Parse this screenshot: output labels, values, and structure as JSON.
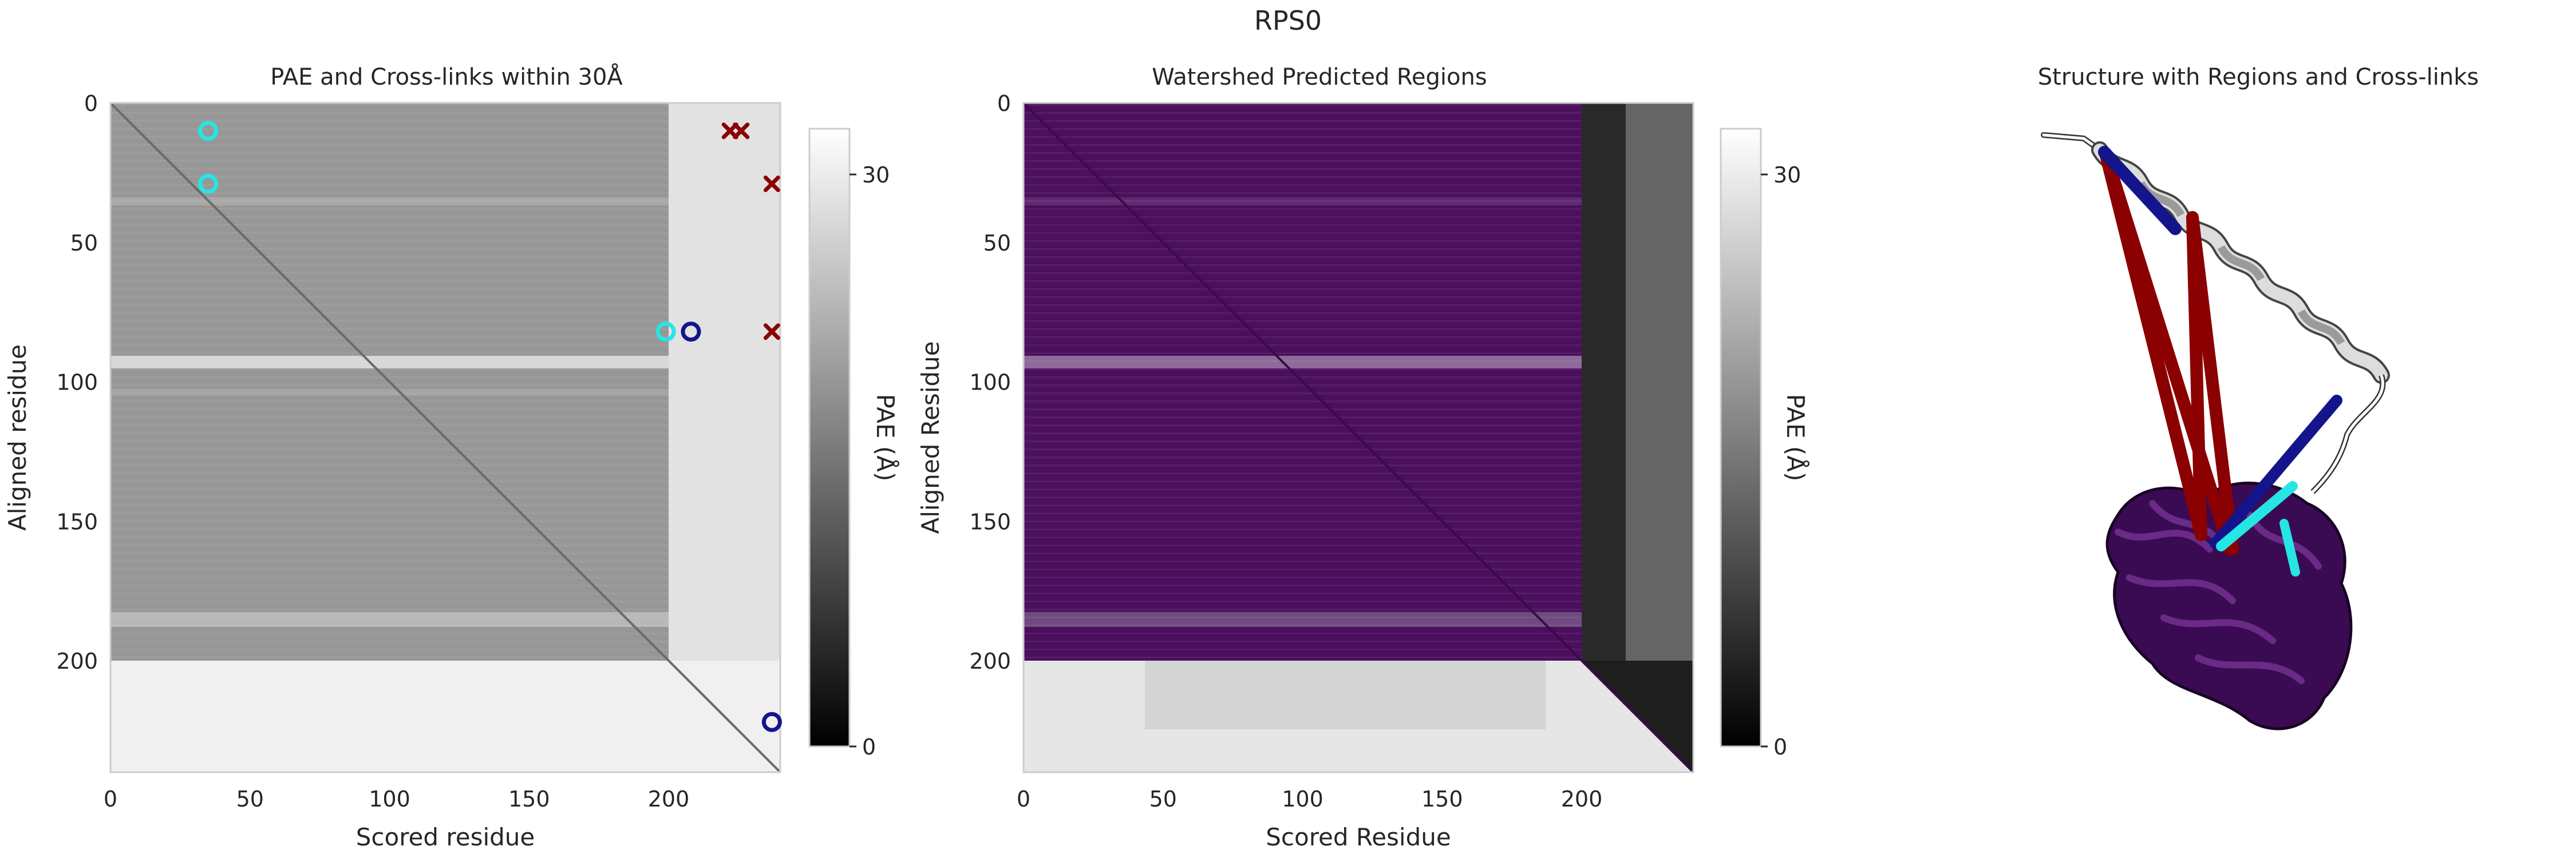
{
  "figure": {
    "title": "RPS0"
  },
  "colors": {
    "frame": "#cccccc",
    "text": "#262626",
    "diag": "#6a6a6a",
    "purple": "#4b0f5e",
    "cyan": "#26e5e5",
    "navy": "#14148c",
    "darkred": "#8b0000"
  },
  "chart_data": [
    {
      "type": "heatmap",
      "title": "PAE and Cross-links within 30Å",
      "xlabel": "Scored residue",
      "ylabel": "Aligned residue",
      "xlim": [
        0,
        240
      ],
      "ylim": [
        240,
        0
      ],
      "xticks": [
        0,
        50,
        100,
        150,
        200
      ],
      "yticks": [
        0,
        50,
        100,
        150,
        200
      ],
      "colorbar": {
        "label": "PAE (Å)",
        "range": [
          0,
          30
        ],
        "ticks": [
          0,
          30
        ],
        "cmap": "Greys_r"
      },
      "diagonal": true,
      "series": [
        {
          "marker": "circle",
          "color": "cyan",
          "points": [
            [
              35,
              10
            ],
            [
              35,
              29
            ],
            [
              199,
              82
            ]
          ]
        },
        {
          "marker": "circle",
          "color": "navy",
          "points": [
            [
              208,
              82
            ],
            [
              237,
              222
            ]
          ]
        },
        {
          "marker": "x",
          "color": "darkred",
          "points": [
            [
              222,
              10
            ],
            [
              226,
              10
            ],
            [
              237,
              29
            ],
            [
              237,
              82
            ]
          ]
        }
      ]
    },
    {
      "type": "heatmap",
      "title": "Watershed Predicted Regions",
      "xlabel": "Scored Residue",
      "ylabel": "Aligned Residue",
      "xlim": [
        0,
        240
      ],
      "ylim": [
        240,
        0
      ],
      "xticks": [
        0,
        50,
        100,
        150,
        200
      ],
      "yticks": [
        0,
        50,
        100,
        150,
        200
      ],
      "colorbar": {
        "label": "PAE (Å)",
        "range": [
          0,
          30
        ],
        "ticks": [
          0,
          30
        ],
        "cmap": "Greys_r"
      },
      "region": {
        "x": [
          0,
          200
        ],
        "y": [
          0,
          200
        ],
        "color": "purple"
      }
    }
  ],
  "structure_panel": {
    "title": "Structure with Regions and Cross-links"
  }
}
